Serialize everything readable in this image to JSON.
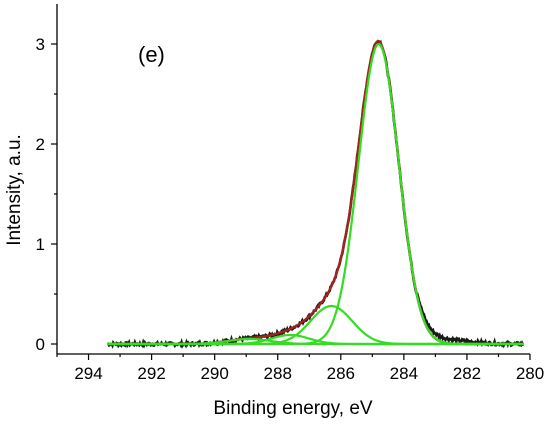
{
  "chart_data": {
    "type": "line",
    "panel_label": "(e)",
    "xlabel": "Binding energy, eV",
    "ylabel": "Intensity, a.u.",
    "xlim": [
      295,
      280
    ],
    "ylim": [
      -0.1,
      3.4
    ],
    "x_reversed": true,
    "x_ticks": [
      294,
      292,
      290,
      288,
      286,
      284,
      282,
      280
    ],
    "y_ticks": [
      0,
      1,
      2,
      3
    ],
    "grid": false,
    "legend": "none",
    "colors": {
      "experimental": "#1a1a1a",
      "envelope": "#a3231d",
      "components": "#33dd22"
    },
    "fit_range": [
      293.4,
      280.2
    ],
    "components": [
      {
        "center": 284.8,
        "height": 3.0,
        "fwhm": 1.5
      },
      {
        "center": 286.3,
        "height": 0.38,
        "fwhm": 1.55
      },
      {
        "center": 287.6,
        "height": 0.09,
        "fwhm": 1.4
      },
      {
        "center": 288.9,
        "height": 0.05,
        "fwhm": 1.6
      }
    ]
  }
}
